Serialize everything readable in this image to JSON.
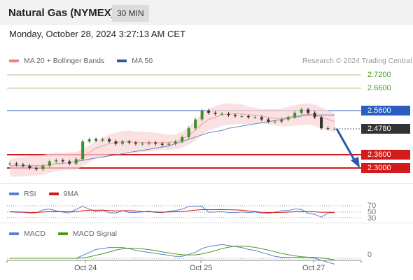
{
  "header": {
    "instrument": "Natural Gas (NYMEX)",
    "interval": "30 MIN",
    "datetime": "Monday, October 28, 2024 3:27:13 AM CET"
  },
  "legend": {
    "items": [
      {
        "label": "MA 20 + Bollinger Bands",
        "color": "#f28080"
      },
      {
        "label": "MA 50",
        "color": "#2f5a9a"
      }
    ],
    "research": "Research © 2024 Trading Central"
  },
  "price_levels": [
    {
      "label": "2.7200",
      "style": "plain"
    },
    {
      "label": "2.6600",
      "style": "plain"
    },
    {
      "label": "2.5600",
      "style": "badge",
      "color": "#2a5fc0"
    },
    {
      "label": "2.4780",
      "style": "badge",
      "color": "#333333"
    },
    {
      "label": "2.3600",
      "style": "badge",
      "color": "#d41a1a"
    },
    {
      "label": "2.3000",
      "style": "badge",
      "color": "#d41a1a"
    }
  ],
  "rsi_panel": {
    "legend": [
      {
        "label": "RSI",
        "color": "#5b7fd4"
      },
      {
        "label": "9MA",
        "color": "#d41a1a"
      }
    ],
    "levels": [
      "70",
      "50",
      "30"
    ]
  },
  "macd_panel": {
    "legend": [
      {
        "label": "MACD",
        "color": "#5b7fd4"
      },
      {
        "label": "MACD Signal",
        "color": "#4a9a1a"
      }
    ],
    "levels": [
      "0"
    ]
  },
  "x_axis": {
    "labels": [
      "Oct 24",
      "Oct 25",
      "Oct 27"
    ]
  },
  "chart_data": {
    "type": "line",
    "price_close": [
      2.32,
      2.315,
      2.31,
      2.3,
      2.295,
      2.31,
      2.33,
      2.335,
      2.33,
      2.32,
      2.34,
      2.42,
      2.43,
      2.425,
      2.43,
      2.42,
      2.41,
      2.42,
      2.415,
      2.41,
      2.41,
      2.415,
      2.41,
      2.405,
      2.41,
      2.42,
      2.44,
      2.48,
      2.52,
      2.56,
      2.55,
      2.545,
      2.545,
      2.54,
      2.535,
      2.535,
      2.53,
      2.53,
      2.52,
      2.51,
      2.51,
      2.52,
      2.53,
      2.55,
      2.565,
      2.55,
      2.53,
      2.48,
      2.478,
      2.478
    ],
    "ma50": [
      2.31,
      2.31,
      2.31,
      2.31,
      2.31,
      2.31,
      2.315,
      2.32,
      2.32,
      2.325,
      2.33,
      2.335,
      2.34,
      2.345,
      2.35,
      2.355,
      2.36,
      2.365,
      2.37,
      2.375,
      2.38,
      2.385,
      2.39,
      2.395,
      2.4,
      2.41,
      2.42,
      2.43,
      2.44,
      2.45,
      2.46,
      2.465,
      2.47,
      2.48,
      2.485,
      2.49,
      2.495,
      2.5,
      2.505,
      2.51,
      2.515,
      2.52,
      2.525,
      2.53,
      2.535,
      2.54,
      2.54,
      2.54,
      2.54,
      2.54
    ],
    "ma20": [
      2.31,
      2.31,
      2.31,
      2.31,
      2.31,
      2.31,
      2.315,
      2.32,
      2.32,
      2.325,
      2.33,
      2.35,
      2.37,
      2.39,
      2.4,
      2.41,
      2.415,
      2.42,
      2.42,
      2.415,
      2.415,
      2.415,
      2.415,
      2.415,
      2.415,
      2.42,
      2.43,
      2.45,
      2.47,
      2.5,
      2.52,
      2.53,
      2.54,
      2.545,
      2.545,
      2.545,
      2.54,
      2.54,
      2.535,
      2.53,
      2.525,
      2.525,
      2.53,
      2.535,
      2.54,
      2.545,
      2.54,
      2.53,
      2.52,
      2.51
    ]
  }
}
